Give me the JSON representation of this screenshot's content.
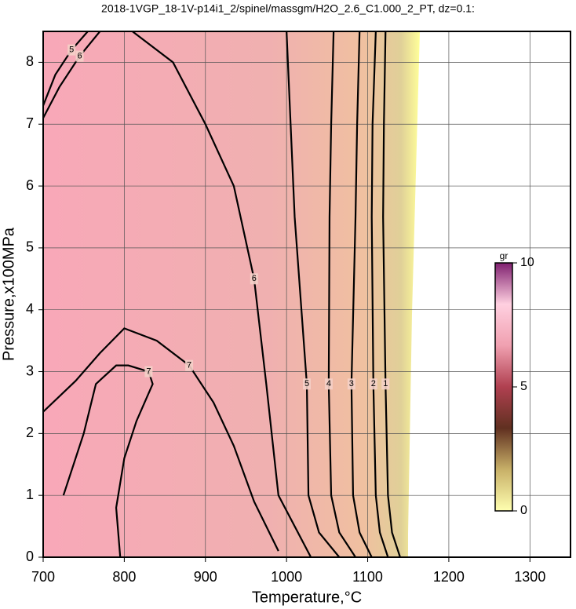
{
  "chart_data": {
    "type": "contour",
    "title": "2018-1VGP_18-1V-p14i1_2/spinel/massgm/H2O_2.6_C1.000_2_PT, dz=0.1:",
    "x_label": "Temperature,°C",
    "y_label": "Pressure,x100MPa",
    "xlim": [
      700,
      1350
    ],
    "ylim": [
      0,
      8.5
    ],
    "xticks": [
      700,
      800,
      900,
      1000,
      1100,
      1200,
      1300
    ],
    "yticks": [
      0,
      1,
      2,
      3,
      4,
      5,
      6,
      7,
      8
    ],
    "grid": true,
    "contours": [
      {
        "level": 1,
        "x": [
          1122,
          1120,
          1119,
          1122,
          1125,
          1130,
          1140
        ],
        "y": [
          8.5,
          7,
          5.5,
          2.8,
          1,
          0.4,
          0
        ]
      },
      {
        "level": 2,
        "x": [
          1110,
          1106,
          1105,
          1107,
          1110,
          1115,
          1125
        ],
        "y": [
          8.5,
          7,
          5.5,
          2.8,
          1,
          0.4,
          0
        ]
      },
      {
        "level": 3,
        "x": [
          1090,
          1087,
          1085,
          1080,
          1082,
          1090,
          1105
        ],
        "y": [
          8.5,
          7,
          5.5,
          2.8,
          1,
          0.4,
          0
        ]
      },
      {
        "level": 4,
        "x": [
          1058,
          1055,
          1053,
          1052,
          1055,
          1065,
          1085
        ],
        "y": [
          8.5,
          7,
          5.5,
          2.8,
          1,
          0.4,
          0
        ]
      },
      {
        "level": 5,
        "x": [
          1000,
          1005,
          1010,
          1025,
          1027,
          1040,
          1065
        ],
        "y": [
          8.5,
          7,
          5.5,
          2.8,
          1,
          0.4,
          0
        ]
      },
      {
        "level": 6,
        "x": [
          810,
          860,
          900,
          935,
          960,
          975,
          990,
          1030
        ],
        "y": [
          8.5,
          8.0,
          7.0,
          6.0,
          4.5,
          2.8,
          1,
          0
        ]
      },
      {
        "level": 7,
        "x": [
          700,
          740,
          770,
          800,
          840,
          880,
          910,
          935,
          960,
          990
        ],
        "y": [
          2.35,
          2.85,
          3.3,
          3.7,
          3.5,
          3.1,
          2.5,
          1.8,
          0.9,
          0.1
        ]
      },
      {
        "level": 7,
        "x": [
          725,
          750,
          765,
          790,
          805,
          830,
          835,
          815,
          800,
          790,
          795
        ],
        "y": [
          1.0,
          2.0,
          2.8,
          3.1,
          3.1,
          3.0,
          2.8,
          2.2,
          1.6,
          0.8,
          0
        ]
      },
      {
        "level": 6,
        "x": [
          700,
          720,
          745,
          770
        ],
        "y": [
          7.1,
          7.6,
          8.1,
          8.5
        ]
      },
      {
        "level": 5,
        "x": [
          700,
          715,
          735,
          755
        ],
        "y": [
          7.3,
          7.8,
          8.2,
          8.5
        ]
      }
    ],
    "colorbar": {
      "label": "gr",
      "lim": [
        0,
        10
      ],
      "ticks": [
        0,
        5,
        10
      ],
      "colors": [
        "#ffffb0",
        "#c8b068",
        "#603020",
        "#b04050",
        "#f0a0b0",
        "#ffd0e0",
        "#802070"
      ]
    }
  }
}
